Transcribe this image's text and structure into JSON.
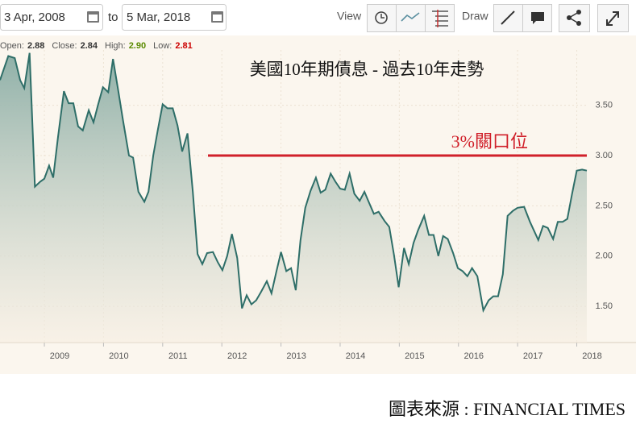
{
  "toolbar": {
    "start_date": "3 Apr, 2008",
    "to": "to",
    "end_date": "5 Mar, 2018",
    "view": "View",
    "draw": "Draw"
  },
  "quote": {
    "open_label": "Open:",
    "open": "2.88",
    "close_label": "Close:",
    "close": "2.84",
    "high_label": "High:",
    "high": "2.90",
    "low_label": "Low:",
    "low": "2.81"
  },
  "chart_data": {
    "type": "area",
    "title": "美國10年期債息 - 過去10年走勢",
    "source": "圖表來源 : FINANCIAL TIMES",
    "color": "#2e6e68",
    "grid": true,
    "x": [
      2008.25,
      2008.39,
      2008.5,
      2008.59,
      2008.66,
      2008.75,
      2008.84,
      2008.93,
      2009.0,
      2009.08,
      2009.15,
      2009.23,
      2009.33,
      2009.41,
      2009.49,
      2009.57,
      2009.65,
      2009.75,
      2009.83,
      2009.91,
      2009.99,
      2010.08,
      2010.16,
      2010.25,
      2010.33,
      2010.43,
      2010.5,
      2010.59,
      2010.69,
      2010.76,
      2010.84,
      2010.92,
      2011.0,
      2011.08,
      2011.17,
      2011.25,
      2011.33,
      2011.42,
      2011.51,
      2011.59,
      2011.67,
      2011.75,
      2011.85,
      2011.93,
      2012.01,
      2012.09,
      2012.17,
      2012.26,
      2012.34,
      2012.42,
      2012.5,
      2012.58,
      2012.66,
      2012.76,
      2012.84,
      2012.92,
      2013.0,
      2013.09,
      2013.17,
      2013.25,
      2013.33,
      2013.41,
      2013.5,
      2013.59,
      2013.67,
      2013.75,
      2013.84,
      2013.92,
      2014.0,
      2014.08,
      2014.16,
      2014.24,
      2014.33,
      2014.41,
      2014.49,
      2014.57,
      2014.65,
      2014.75,
      2014.83,
      2014.91,
      2014.99,
      2015.08,
      2015.16,
      2015.24,
      2015.32,
      2015.42,
      2015.5,
      2015.58,
      2015.66,
      2015.74,
      2015.82,
      2015.91,
      2015.99,
      2016.07,
      2016.15,
      2016.23,
      2016.32,
      2016.42,
      2016.51,
      2016.59,
      2016.67,
      2016.75,
      2016.83,
      2016.92,
      2017.0,
      2017.11,
      2017.21,
      2017.35,
      2017.43,
      2017.51,
      2017.6,
      2017.68,
      2017.76,
      2017.84,
      2017.92,
      2018.0,
      2018.09,
      2018.17
    ],
    "values": [
      3.75,
      3.99,
      3.97,
      3.75,
      3.67,
      4.02,
      2.69,
      2.74,
      2.77,
      2.9,
      2.78,
      3.18,
      3.64,
      3.52,
      3.52,
      3.29,
      3.25,
      3.45,
      3.33,
      3.51,
      3.68,
      3.63,
      3.96,
      3.64,
      3.35,
      3.0,
      2.98,
      2.64,
      2.54,
      2.64,
      3.0,
      3.26,
      3.51,
      3.47,
      3.47,
      3.3,
      3.04,
      3.22,
      2.64,
      2.02,
      1.92,
      2.03,
      2.04,
      1.94,
      1.86,
      2.0,
      2.22,
      1.98,
      1.48,
      1.61,
      1.52,
      1.56,
      1.64,
      1.75,
      1.63,
      1.84,
      2.04,
      1.85,
      1.88,
      1.66,
      2.16,
      2.48,
      2.65,
      2.78,
      2.63,
      2.66,
      2.82,
      2.74,
      2.67,
      2.66,
      2.82,
      2.62,
      2.55,
      2.64,
      2.53,
      2.42,
      2.44,
      2.35,
      2.29,
      2.01,
      1.69,
      2.08,
      1.92,
      2.13,
      2.26,
      2.4,
      2.21,
      2.21,
      2.0,
      2.2,
      2.17,
      2.03,
      1.88,
      1.85,
      1.8,
      1.88,
      1.8,
      1.46,
      1.56,
      1.6,
      1.6,
      1.82,
      2.4,
      2.45,
      2.48,
      2.49,
      2.34,
      2.16,
      2.3,
      2.28,
      2.17,
      2.34,
      2.34,
      2.37,
      2.62,
      2.85,
      2.86,
      2.85
    ],
    "xlim": [
      2008.25,
      2018.17
    ],
    "xticks": [
      2009,
      2010,
      2011,
      2012,
      2013,
      2014,
      2015,
      2016,
      2017,
      2018
    ],
    "ylim": [
      1.14,
      4.05
    ],
    "yticks": [
      {
        "value": 1.5,
        "label": "1.50"
      },
      {
        "value": 2,
        "label": "2.00"
      },
      {
        "value": 2.5,
        "label": "2.50"
      },
      {
        "value": 3,
        "label": "3.00"
      },
      {
        "value": 3.5,
        "label": "3.50"
      }
    ],
    "reference_line": {
      "value": 3,
      "label": "3%關口位",
      "color": "#d0202a"
    }
  }
}
